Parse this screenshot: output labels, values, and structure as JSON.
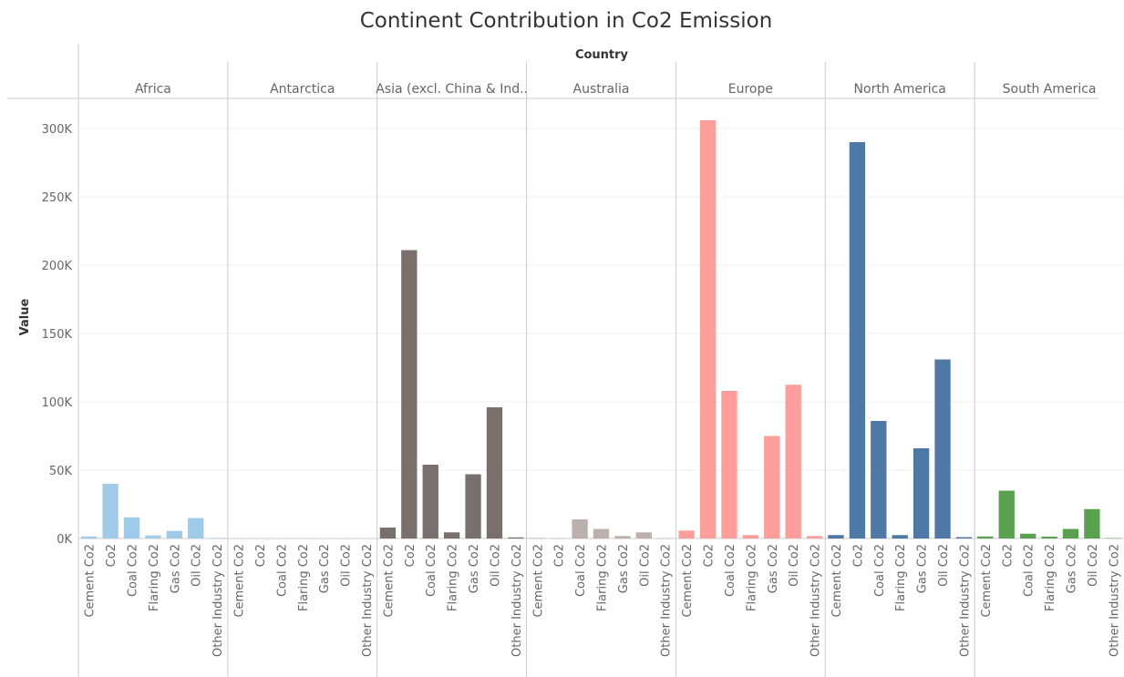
{
  "chart_data": {
    "type": "bar",
    "title": "Continent Contribution in Co2 Emission",
    "header": "Country",
    "ylabel": "Value",
    "ylim": [
      0,
      310000
    ],
    "yticks": [
      0,
      50000,
      100000,
      150000,
      200000,
      250000,
      300000
    ],
    "ytick_labels": [
      "0K",
      "50K",
      "100K",
      "150K",
      "200K",
      "250K",
      "300K"
    ],
    "grid": true,
    "categories": [
      "Cement Co2",
      "Co2",
      "Coal Co2",
      "Flaring Co2",
      "Gas Co2",
      "Oil Co2",
      "Other Industry Co2"
    ],
    "panels": [
      {
        "name": "Africa",
        "color": "#A0CBE8",
        "values": [
          1500,
          40000,
          15500,
          2300,
          5600,
          15000,
          400
        ]
      },
      {
        "name": "Antarctica",
        "color": "#B0B0B0",
        "values": [
          0,
          0,
          0,
          0,
          0,
          0,
          0
        ]
      },
      {
        "name": "Asia (excl. China & Ind..",
        "color": "#79706E",
        "values": [
          8000,
          211000,
          54000,
          4500,
          47000,
          96000,
          800
        ]
      },
      {
        "name": "Australia",
        "color": "#BAB0AC",
        "values": [
          400,
          200,
          14000,
          7000,
          1800,
          4500,
          200
        ]
      },
      {
        "name": "Europe",
        "color": "#FF9D9A",
        "values": [
          5800,
          306000,
          108000,
          2500,
          75000,
          112500,
          1800
        ]
      },
      {
        "name": "North America",
        "color": "#4E79A7",
        "values": [
          2500,
          290000,
          86000,
          2500,
          66000,
          131000,
          1000
        ]
      },
      {
        "name": "South America",
        "color": "#59A14F",
        "values": [
          1500,
          35000,
          3500,
          1400,
          7000,
          21500,
          300
        ]
      }
    ]
  }
}
